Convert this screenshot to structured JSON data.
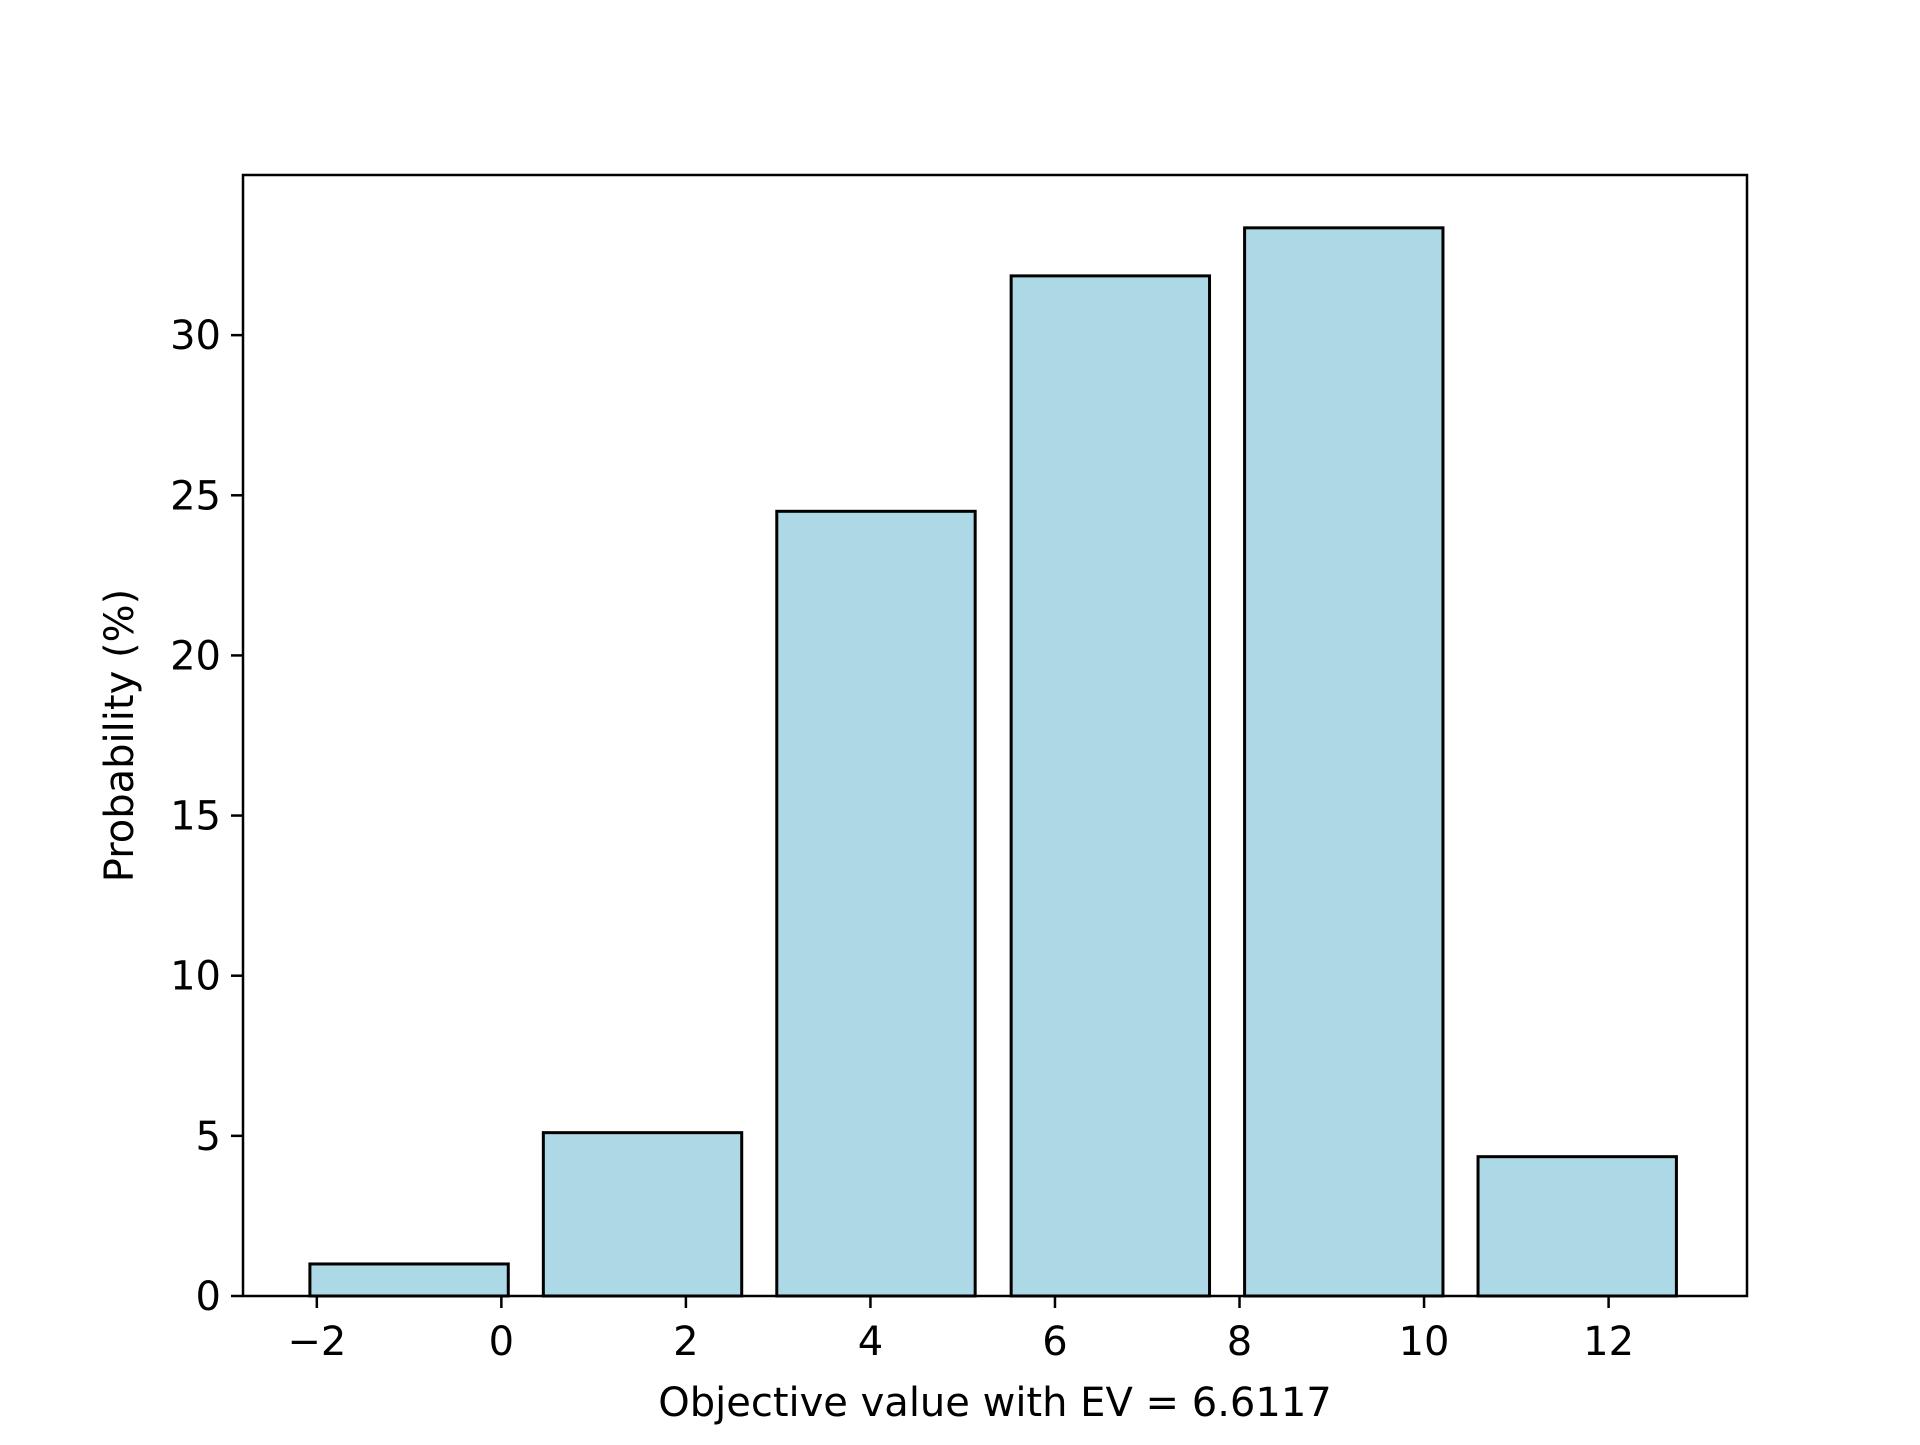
{
  "chart_data": {
    "type": "bar",
    "title": "",
    "xlabel": "Objective value with EV = 6.6117",
    "ylabel": "Probability (%)",
    "x_ticks": [
      "−2",
      "0",
      "2",
      "4",
      "6",
      "8",
      "10",
      "12"
    ],
    "x_tick_values": [
      -2,
      0,
      2,
      4,
      6,
      8,
      10,
      12
    ],
    "y_ticks": [
      "0",
      "5",
      "10",
      "15",
      "20",
      "25",
      "30"
    ],
    "y_tick_values": [
      0,
      5,
      10,
      15,
      20,
      25,
      30
    ],
    "xlim": [
      -2.8,
      13.5
    ],
    "ylim": [
      0,
      35
    ],
    "bar_width": 2.15,
    "bars": [
      {
        "x": -1,
        "value": 1.0
      },
      {
        "x": 1.53,
        "value": 5.1
      },
      {
        "x": 4.06,
        "value": 24.5
      },
      {
        "x": 6.6,
        "value": 31.85
      },
      {
        "x": 9.13,
        "value": 33.35
      },
      {
        "x": 11.66,
        "value": 4.35
      }
    ],
    "bar_color": "#add8e6",
    "edge_color": "#000000",
    "grid": false,
    "legend": "none"
  }
}
